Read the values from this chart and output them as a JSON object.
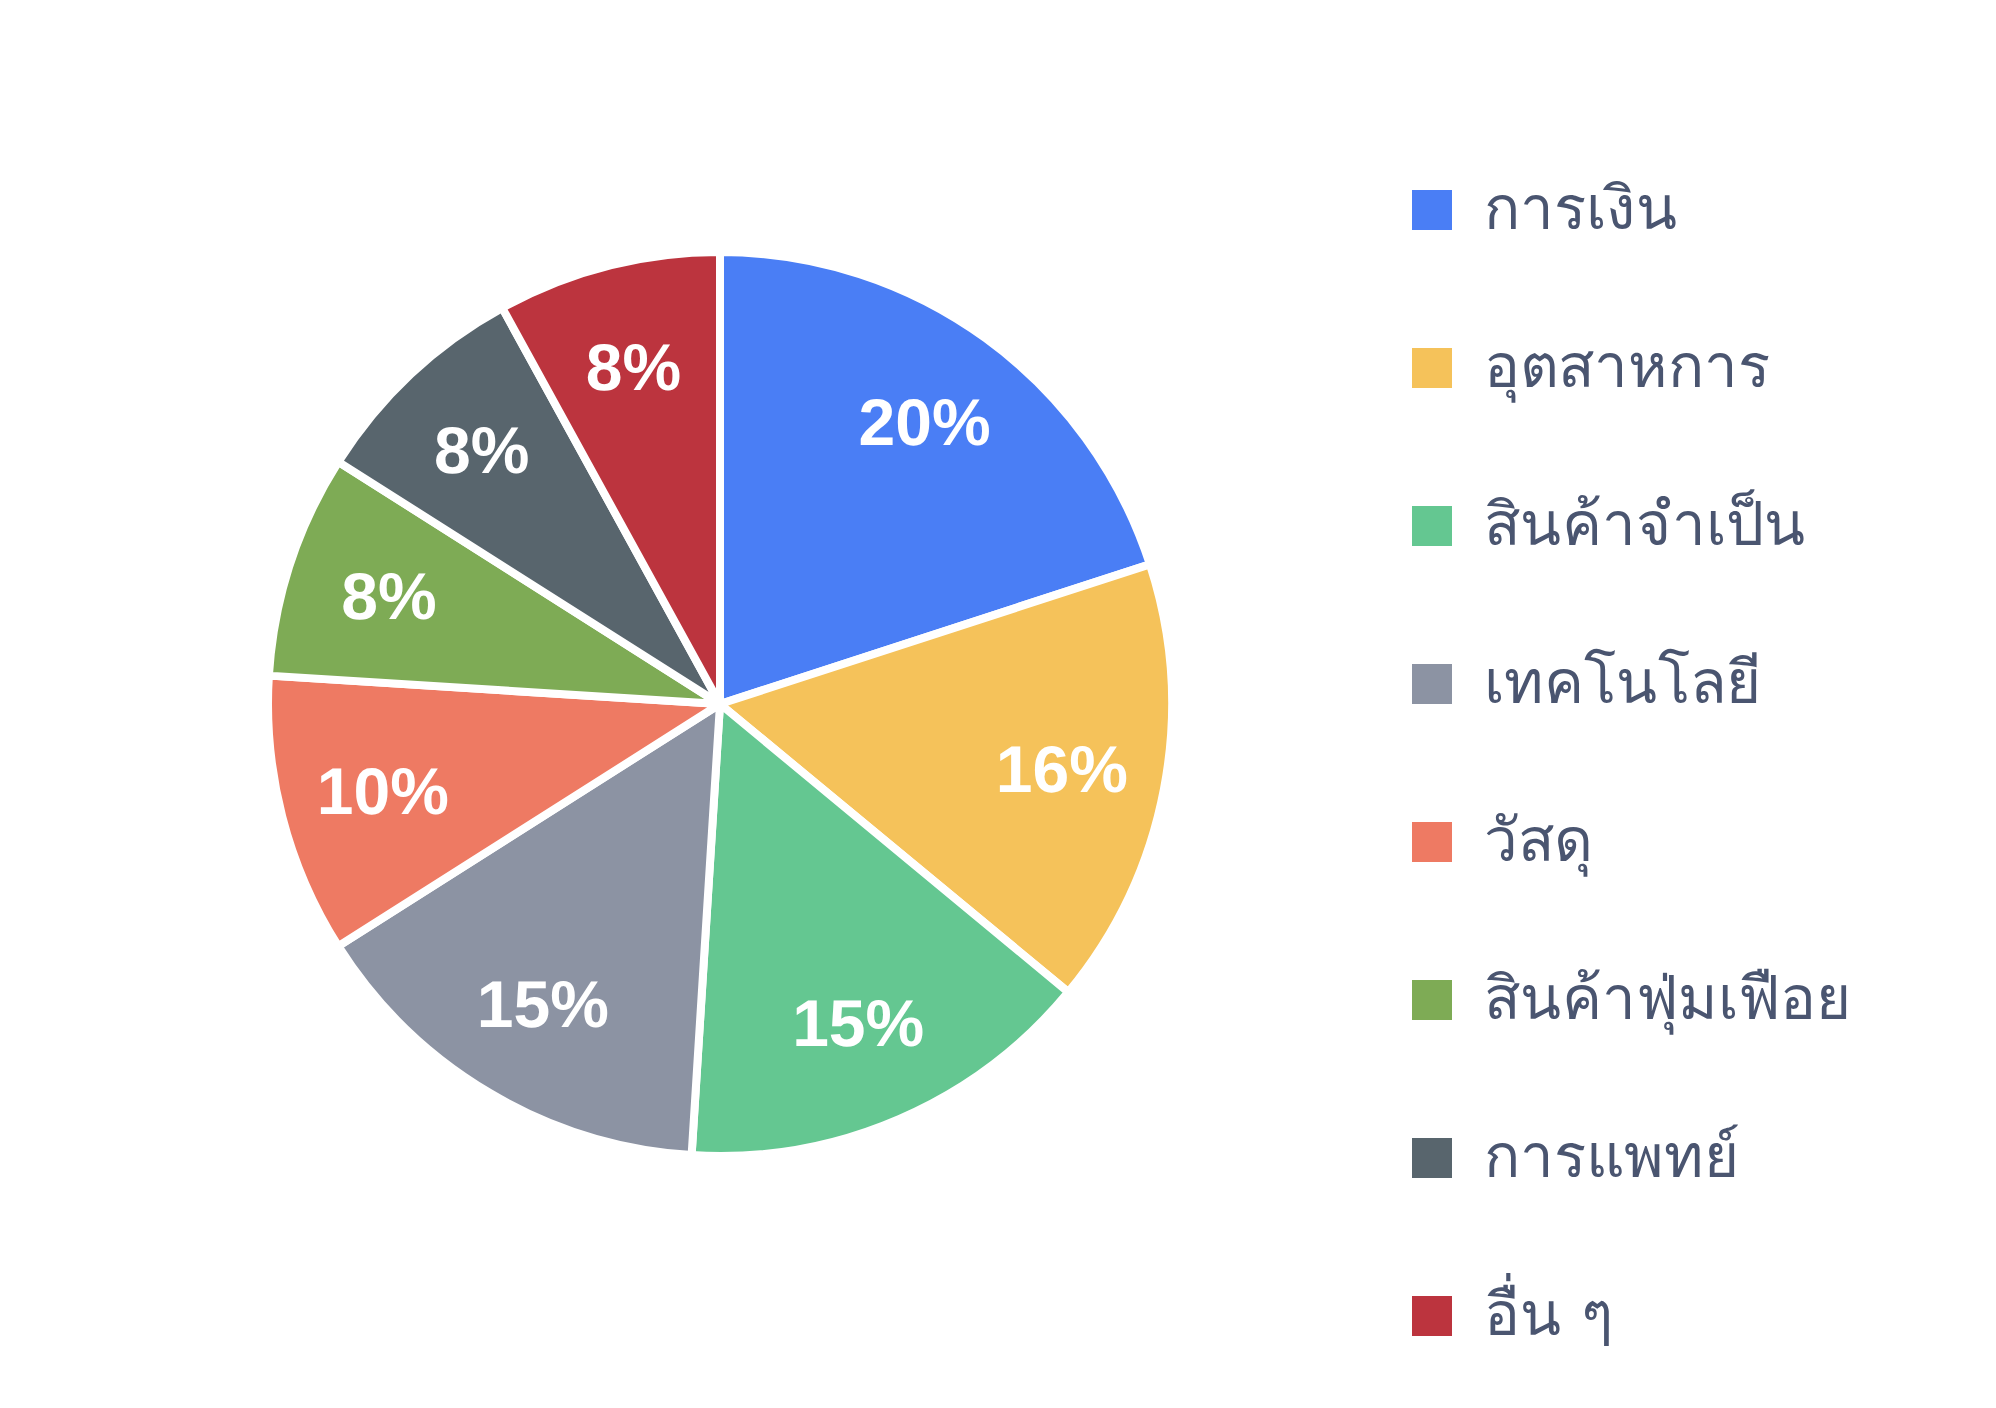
{
  "chart_data": {
    "type": "pie",
    "categories": [
      "การเงิน",
      "อุตสาหการ",
      "สินค้าจำเป็น",
      "เทคโนโลยี",
      "วัสดุ",
      "สินค้าฟุ่มเฟือย",
      "การแพทย์",
      "อื่น ๆ"
    ],
    "values": [
      20,
      16,
      15,
      15,
      10,
      8,
      8,
      8
    ],
    "colors": [
      "#4a7ef5",
      "#f5c25a",
      "#64c791",
      "#8c93a3",
      "#ee7a63",
      "#7eab55",
      "#58656d",
      "#bc343e"
    ],
    "value_labels": [
      "20%",
      "16%",
      "15%",
      "15%",
      "10%",
      "8%",
      "8%",
      "8%"
    ],
    "legend": "right"
  }
}
